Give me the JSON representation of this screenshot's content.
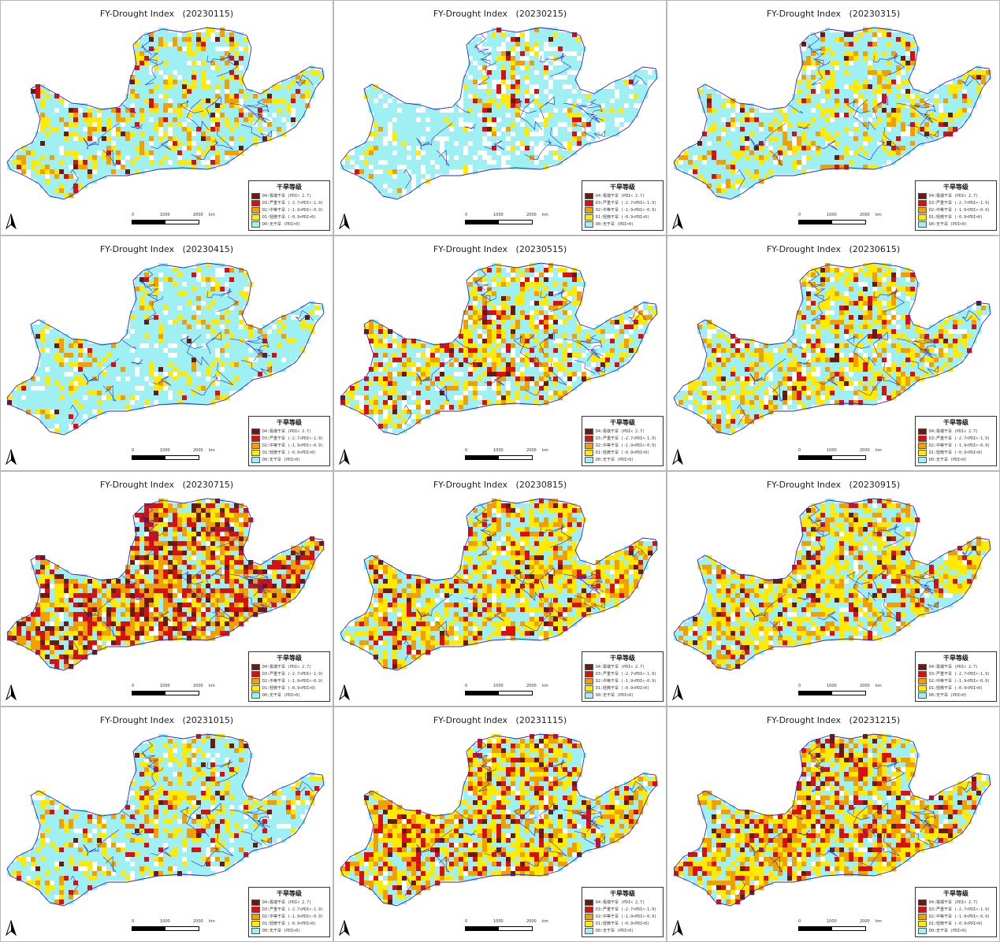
{
  "colors": {
    "boundary": "#2828c8",
    "no_data": "#ffffff",
    "D0": "#9ff0f2",
    "D1": "#ffea00",
    "D2": "#f0a000",
    "D3": "#d81010",
    "D4": "#6a1a10"
  },
  "legend": {
    "title": "干旱等级",
    "items": [
      {
        "label": "D4:极端干旱 (PDI< 2.7)",
        "color": "#6a1a10"
      },
      {
        "label": "D3:严重干旱 (-2.7<PDI<-1.9)",
        "color": "#d81010"
      },
      {
        "label": "D2:中等干旱 (-1.9<PDI<-0.9)",
        "color": "#f0a000"
      },
      {
        "label": "D1:轻微干旱 (-0.9<PDI<0)",
        "color": "#ffea00"
      },
      {
        "label": "D0:无干旱 (PDI>0)",
        "color": "#9ff0f2"
      }
    ]
  },
  "scale": {
    "left": "0",
    "mid": "1000",
    "right": "2000",
    "unit": "km"
  },
  "north_arrow_icon": "north-arrow-icon",
  "panels": [
    {
      "title": "FY-Drought Index   (20230115)",
      "drought_level": "low-moderate"
    },
    {
      "title": "FY-Drought Index   (20230215)",
      "drought_level": "minimal"
    },
    {
      "title": "FY-Drought Index   (20230315)",
      "drought_level": "low-moderate"
    },
    {
      "title": "FY-Drought Index   (20230415)",
      "drought_level": "low"
    },
    {
      "title": "FY-Drought Index   (20230515)",
      "drought_level": "moderate-west"
    },
    {
      "title": "FY-Drought Index   (20230615)",
      "drought_level": "moderate"
    },
    {
      "title": "FY-Drought Index   (20230715)",
      "drought_level": "severe"
    },
    {
      "title": "FY-Drought Index   (20230815)",
      "drought_level": "high"
    },
    {
      "title": "FY-Drought Index   (20230915)",
      "drought_level": "moderate-high"
    },
    {
      "title": "FY-Drought Index   (20231015)",
      "drought_level": "low-moderate"
    },
    {
      "title": "FY-Drought Index   (20231115)",
      "drought_level": "high-north"
    },
    {
      "title": "FY-Drought Index   (20231215)",
      "drought_level": "high-east"
    }
  ]
}
